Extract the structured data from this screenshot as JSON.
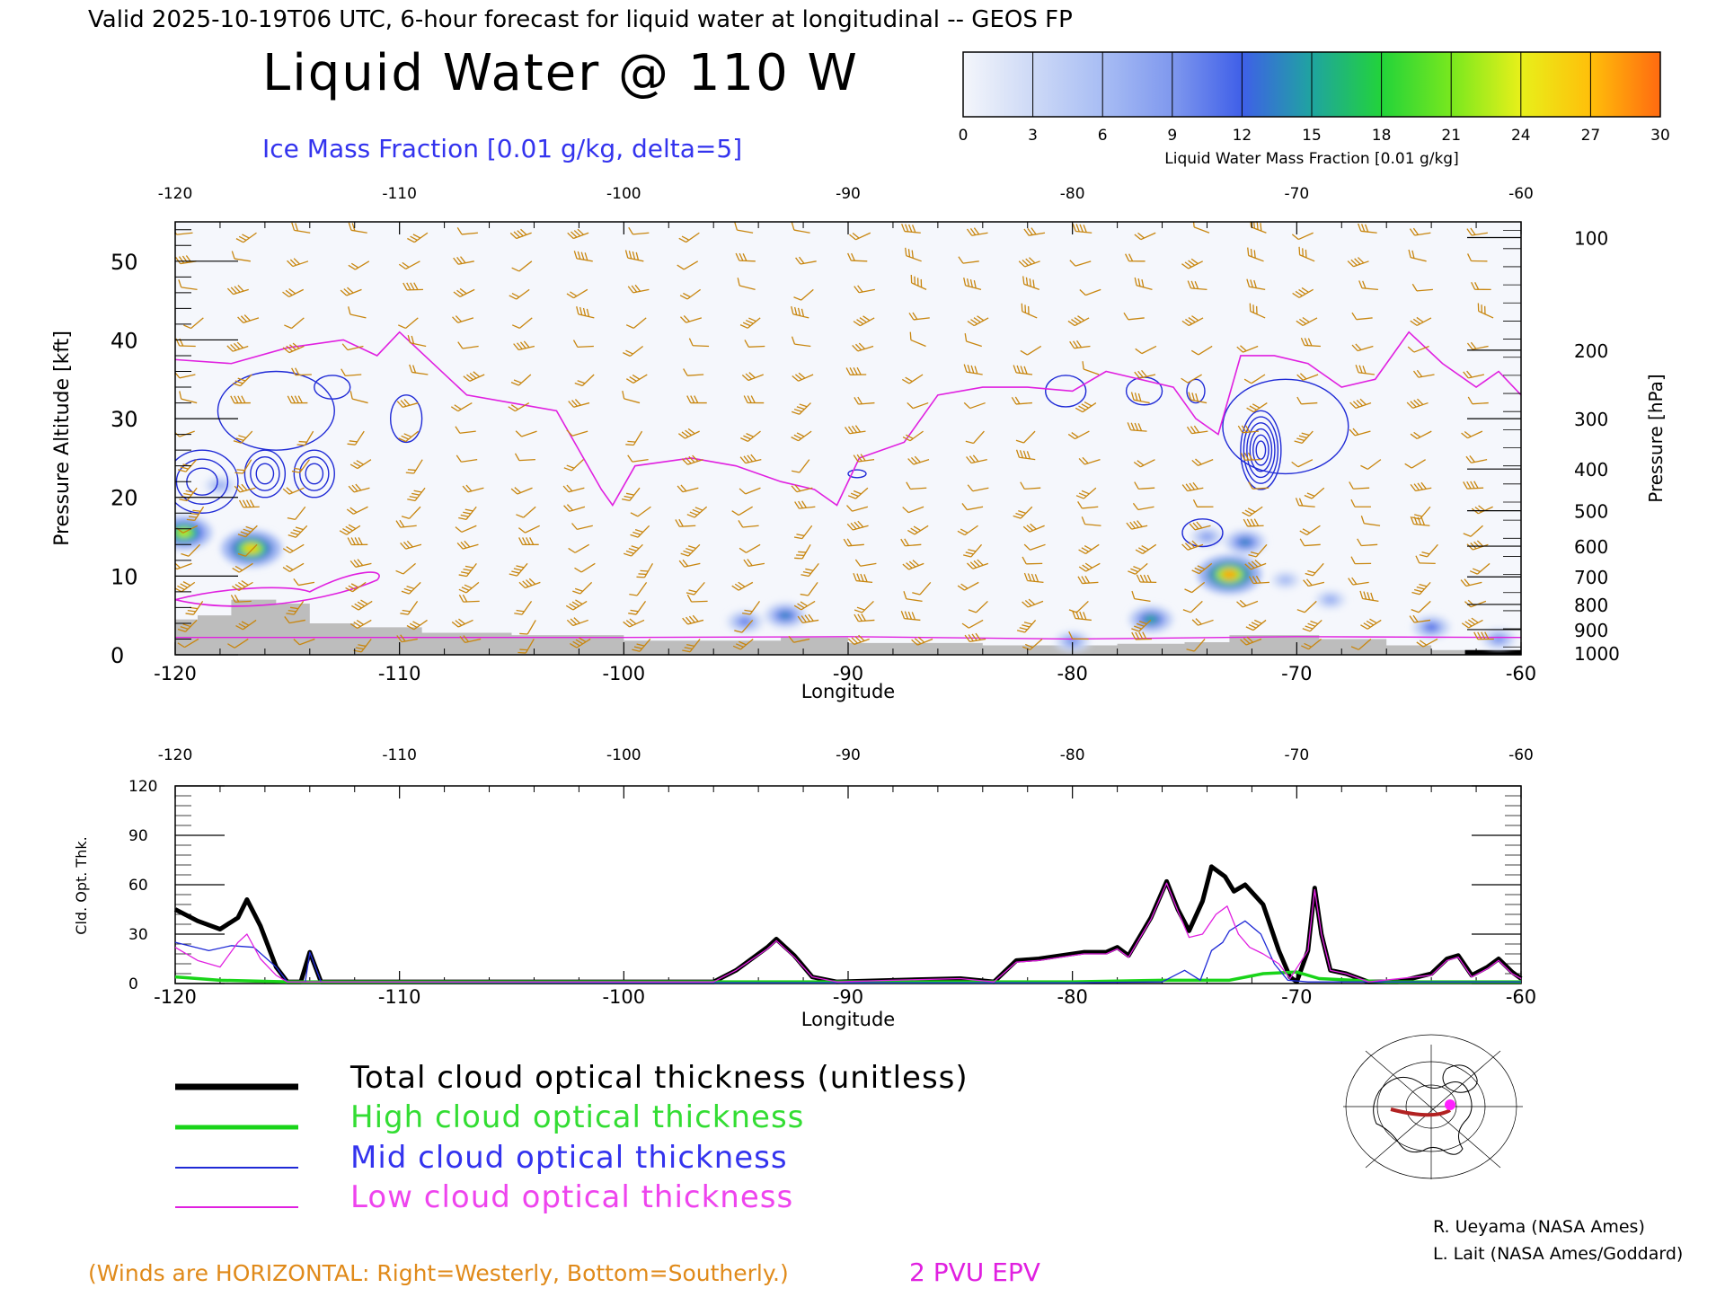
{
  "header": {
    "valid_line": "Valid 2025-10-19T06 UTC, 6-hour forecast for liquid water at longitudinal -- GEOS FP",
    "title": "Liquid Water @ 110 W",
    "subtitle": "Ice Mass Fraction [0.01 g/kg, delta=5]"
  },
  "colorbar": {
    "label": "Liquid Water Mass Fraction [0.01 g/kg]",
    "ticks": [
      "0",
      "3",
      "6",
      "9",
      "12",
      "15",
      "18",
      "21",
      "24",
      "27",
      "30"
    ],
    "colors": [
      "#f4f6fb",
      "#cdd9f6",
      "#a8bdf4",
      "#7f98ee",
      "#3f5fe8",
      "#1fa4a0",
      "#22d33a",
      "#78e81e",
      "#e8f01a",
      "#ffbf0a",
      "#ff6a10"
    ]
  },
  "colors": {
    "wind": "#c8860f",
    "ice_contour": "#1f2ad6",
    "epv": "#e020e0",
    "terrain": "#bdbdbd",
    "total": "#000000",
    "high": "#19d419",
    "mid": "#1f2ad6",
    "low": "#e020e0",
    "credit_wind": "#e08a1a"
  },
  "chart_data": [
    {
      "type": "heatmap",
      "title": "Liquid Water @ 110 W",
      "xlabel": "Longitude",
      "ylabel": "Pressure Altitude [kft]",
      "y2label": "Pressure [hPa]",
      "xlim": [
        -120,
        -60
      ],
      "ylim": [
        0,
        55
      ],
      "x_ticks": [
        "-120",
        "-110",
        "-100",
        "-90",
        "-80",
        "-70",
        "-60"
      ],
      "y_ticks": [
        "0",
        "10",
        "20",
        "30",
        "40",
        "50"
      ],
      "pressure_ticks": [
        {
          "label": "100",
          "kft": 53
        },
        {
          "label": "200",
          "kft": 38.7
        },
        {
          "label": "300",
          "kft": 30
        },
        {
          "label": "400",
          "kft": 23.6
        },
        {
          "label": "500",
          "kft": 18.3
        },
        {
          "label": "600",
          "kft": 13.8
        },
        {
          "label": "700",
          "kft": 9.9
        },
        {
          "label": "800",
          "kft": 6.4
        },
        {
          "label": "900",
          "kft": 3.2
        },
        {
          "label": "1000",
          "kft": 0.2
        }
      ],
      "liquid_water_blobs": [
        {
          "lon": -119.6,
          "kft": 15.5,
          "value": 23
        },
        {
          "lon": -116.6,
          "kft": 13.5,
          "value": 26
        },
        {
          "lon": -118.0,
          "kft": 21.5,
          "value": 8
        },
        {
          "lon": -92.8,
          "kft": 5.0,
          "value": 14
        },
        {
          "lon": -94.6,
          "kft": 4.2,
          "value": 11
        },
        {
          "lon": -76.5,
          "kft": 4.5,
          "value": 16
        },
        {
          "lon": -73.0,
          "kft": 10.2,
          "value": 28
        },
        {
          "lon": -74.0,
          "kft": 15.0,
          "value": 9
        },
        {
          "lon": -72.3,
          "kft": 14.3,
          "value": 14
        },
        {
          "lon": -70.5,
          "kft": 9.5,
          "value": 7
        },
        {
          "lon": -68.5,
          "kft": 7.0,
          "value": 8
        },
        {
          "lon": -64.0,
          "kft": 3.5,
          "value": 12
        },
        {
          "lon": -61.0,
          "kft": 2.0,
          "value": 10
        },
        {
          "lon": -80.0,
          "kft": 1.7,
          "value": 10
        }
      ],
      "ice_contours": [
        {
          "lon": -118.8,
          "kft": 22,
          "w": 1.6,
          "h": 8,
          "n": 3
        },
        {
          "lon": -116.0,
          "kft": 23,
          "w": 0.9,
          "h": 6,
          "n": 3
        },
        {
          "lon": -113.8,
          "kft": 23,
          "w": 0.9,
          "h": 6,
          "n": 3
        },
        {
          "lon": -115.5,
          "kft": 31,
          "w": 2.6,
          "h": 10,
          "n": 1
        },
        {
          "lon": -113.0,
          "kft": 34,
          "w": 0.8,
          "h": 3,
          "n": 1
        },
        {
          "lon": -109.7,
          "kft": 30,
          "w": 0.7,
          "h": 6,
          "n": 1
        },
        {
          "lon": -80.3,
          "kft": 33.5,
          "w": 0.9,
          "h": 4,
          "n": 1
        },
        {
          "lon": -76.8,
          "kft": 33.5,
          "w": 0.8,
          "h": 3.5,
          "n": 1
        },
        {
          "lon": -74.5,
          "kft": 33.5,
          "w": 0.4,
          "h": 3,
          "n": 1
        },
        {
          "lon": -71.6,
          "kft": 26,
          "w": 0.9,
          "h": 10,
          "n": 6
        },
        {
          "lon": -70.5,
          "kft": 29,
          "w": 2.8,
          "h": 12,
          "n": 1
        },
        {
          "lon": -74.2,
          "kft": 15.5,
          "w": 0.9,
          "h": 3.5,
          "n": 1
        },
        {
          "lon": -89.6,
          "kft": 23,
          "w": 0.4,
          "h": 1,
          "n": 1
        }
      ],
      "epv_2pvu": [
        [
          -120,
          37.5
        ],
        [
          -117.5,
          37
        ],
        [
          -115,
          39
        ],
        [
          -112.5,
          40
        ],
        [
          -111,
          38
        ],
        [
          -110,
          41
        ],
        [
          -107,
          33
        ],
        [
          -105,
          32
        ],
        [
          -103,
          31
        ],
        [
          -102,
          26
        ],
        [
          -101,
          21
        ],
        [
          -100.5,
          19
        ],
        [
          -99.5,
          24
        ],
        [
          -97,
          25
        ],
        [
          -95,
          24
        ],
        [
          -93,
          22
        ],
        [
          -91.5,
          21
        ],
        [
          -90.5,
          19
        ],
        [
          -89.5,
          25
        ],
        [
          -87.5,
          27
        ],
        [
          -86,
          33
        ],
        [
          -84,
          34
        ],
        [
          -82,
          34
        ],
        [
          -80,
          33.5
        ],
        [
          -78.5,
          36
        ],
        [
          -77,
          35
        ],
        [
          -75.5,
          34
        ],
        [
          -74.5,
          30
        ],
        [
          -73.5,
          28
        ],
        [
          -72.5,
          38
        ],
        [
          -71,
          38
        ],
        [
          -69.5,
          37
        ],
        [
          -68,
          34
        ],
        [
          -66.5,
          35
        ],
        [
          -65,
          41
        ],
        [
          -63.5,
          37
        ],
        [
          -62,
          34
        ],
        [
          -61,
          36
        ],
        [
          -60,
          33
        ]
      ],
      "terrain": [
        [
          -120,
          4.5
        ],
        [
          -119,
          5
        ],
        [
          -117.5,
          7
        ],
        [
          -115.5,
          6.5
        ],
        [
          -114,
          4
        ],
        [
          -112,
          3.5
        ],
        [
          -109,
          2.8
        ],
        [
          -105,
          2.5
        ],
        [
          -102,
          2.5
        ],
        [
          -100,
          1.8
        ],
        [
          -97,
          1.8
        ],
        [
          -93,
          2.2
        ],
        [
          -90,
          1.5
        ],
        [
          -87,
          1.5
        ],
        [
          -84,
          1.2
        ],
        [
          -81,
          1.2
        ],
        [
          -78,
          1.4
        ],
        [
          -75,
          1.6
        ],
        [
          -73,
          2.5
        ],
        [
          -71,
          2.5
        ],
        [
          -69,
          2
        ],
        [
          -66,
          1.2
        ],
        [
          -64,
          0.6
        ],
        [
          -62,
          0.3
        ],
        [
          -60,
          0
        ]
      ],
      "wind_legend": "(Winds are HORIZONTAL: Right=Westerly, Bottom=Southerly.)",
      "epv_legend": "2 PVU EPV"
    },
    {
      "type": "line",
      "xlabel": "Longitude",
      "ylabel": "Cld. Opt. Thk.",
      "xlim": [
        -120,
        -60
      ],
      "ylim": [
        0,
        120
      ],
      "x_ticks": [
        "-120",
        "-110",
        "-100",
        "-90",
        "-80",
        "-70",
        "-60"
      ],
      "y_ticks": [
        "0",
        "30",
        "60",
        "90",
        "120"
      ],
      "series": [
        {
          "name": "Total cloud optical thickness (unitless)",
          "color": "#000000",
          "width": 5,
          "points": [
            [
              -120,
              45
            ],
            [
              -119,
              38
            ],
            [
              -118,
              33
            ],
            [
              -117.2,
              40
            ],
            [
              -116.8,
              51
            ],
            [
              -116.2,
              35
            ],
            [
              -115.5,
              10
            ],
            [
              -115,
              1
            ],
            [
              -114.4,
              1
            ],
            [
              -114,
              19
            ],
            [
              -113.5,
              1
            ],
            [
              -112,
              1
            ],
            [
              -100,
              1
            ],
            [
              -96,
              1
            ],
            [
              -95,
              8
            ],
            [
              -93.6,
              22
            ],
            [
              -93.2,
              27
            ],
            [
              -92.4,
              17
            ],
            [
              -91.6,
              4
            ],
            [
              -90.5,
              1
            ],
            [
              -88,
              2
            ],
            [
              -85,
              3
            ],
            [
              -83.5,
              1
            ],
            [
              -82.5,
              14
            ],
            [
              -81.5,
              15
            ],
            [
              -80.5,
              17
            ],
            [
              -79.5,
              19
            ],
            [
              -78.5,
              19
            ],
            [
              -78,
              22
            ],
            [
              -77.5,
              17
            ],
            [
              -76.5,
              40
            ],
            [
              -75.8,
              62
            ],
            [
              -75.3,
              45
            ],
            [
              -74.8,
              32
            ],
            [
              -74.2,
              50
            ],
            [
              -73.8,
              71
            ],
            [
              -73.2,
              65
            ],
            [
              -72.8,
              56
            ],
            [
              -72.3,
              60
            ],
            [
              -71.5,
              48
            ],
            [
              -70.8,
              20
            ],
            [
              -70.3,
              4
            ],
            [
              -70,
              1
            ],
            [
              -69.5,
              20
            ],
            [
              -69.2,
              58
            ],
            [
              -68.9,
              30
            ],
            [
              -68.5,
              8
            ],
            [
              -67.8,
              6
            ],
            [
              -66.8,
              1
            ],
            [
              -65.5,
              1
            ],
            [
              -64,
              6
            ],
            [
              -63.3,
              15
            ],
            [
              -62.8,
              17
            ],
            [
              -62.2,
              5
            ],
            [
              -61.5,
              10
            ],
            [
              -61,
              15
            ],
            [
              -60.4,
              7
            ],
            [
              -60,
              3
            ]
          ]
        },
        {
          "name": "High cloud optical thickness",
          "color": "#19d419",
          "width": 3.5,
          "points": [
            [
              -120,
              4
            ],
            [
              -118,
              2
            ],
            [
              -115,
              1
            ],
            [
              -105,
              1
            ],
            [
              -95,
              1
            ],
            [
              -90,
              1
            ],
            [
              -80,
              1
            ],
            [
              -76,
              2
            ],
            [
              -73,
              2
            ],
            [
              -71.5,
              6
            ],
            [
              -70,
              7
            ],
            [
              -69,
              3
            ],
            [
              -66,
              1
            ],
            [
              -60,
              1
            ]
          ]
        },
        {
          "name": "Mid cloud optical thickness",
          "color": "#1f2ad6",
          "width": 1.3,
          "points": [
            [
              -120,
              25
            ],
            [
              -118.5,
              20
            ],
            [
              -117.5,
              23
            ],
            [
              -116.5,
              22
            ],
            [
              -115.5,
              10
            ],
            [
              -115,
              1
            ],
            [
              -114.2,
              1
            ],
            [
              -114,
              19
            ],
            [
              -113.5,
              1
            ],
            [
              -100,
              0.5
            ],
            [
              -80,
              0.5
            ],
            [
              -76,
              1
            ],
            [
              -75,
              8
            ],
            [
              -74.3,
              2
            ],
            [
              -73.8,
              20
            ],
            [
              -73.3,
              25
            ],
            [
              -73,
              32
            ],
            [
              -72.3,
              38
            ],
            [
              -71.6,
              30
            ],
            [
              -71,
              12
            ],
            [
              -70.4,
              2
            ],
            [
              -69.5,
              1
            ],
            [
              -60,
              1
            ]
          ]
        },
        {
          "name": "Low cloud optical thickness",
          "color": "#e020e0",
          "width": 1.3,
          "points": [
            [
              -120,
              22
            ],
            [
              -119,
              14
            ],
            [
              -118,
              10
            ],
            [
              -117.2,
              25
            ],
            [
              -116.8,
              30
            ],
            [
              -116.2,
              15
            ],
            [
              -115.5,
              5
            ],
            [
              -115,
              1
            ],
            [
              -96,
              1
            ],
            [
              -95,
              8
            ],
            [
              -93.6,
              21
            ],
            [
              -93.2,
              26
            ],
            [
              -92.4,
              16
            ],
            [
              -91.6,
              4
            ],
            [
              -90.5,
              1
            ],
            [
              -88,
              2
            ],
            [
              -85,
              3
            ],
            [
              -83.5,
              1
            ],
            [
              -82.5,
              13
            ],
            [
              -81.5,
              14
            ],
            [
              -80.5,
              16
            ],
            [
              -79.5,
              18
            ],
            [
              -78.5,
              18
            ],
            [
              -78,
              21
            ],
            [
              -77.5,
              16
            ],
            [
              -76.5,
              39
            ],
            [
              -75.8,
              61
            ],
            [
              -75.3,
              44
            ],
            [
              -74.8,
              28
            ],
            [
              -74.2,
              30
            ],
            [
              -73.6,
              42
            ],
            [
              -73.1,
              47
            ],
            [
              -72.6,
              30
            ],
            [
              -72.1,
              22
            ],
            [
              -71.5,
              18
            ],
            [
              -70.8,
              12
            ],
            [
              -70.3,
              3
            ],
            [
              -69.5,
              20
            ],
            [
              -69.2,
              57
            ],
            [
              -68.9,
              30
            ],
            [
              -68.5,
              8
            ],
            [
              -67.8,
              6
            ],
            [
              -66.8,
              1
            ],
            [
              -64,
              5
            ],
            [
              -63.3,
              14
            ],
            [
              -62.8,
              16
            ],
            [
              -62.2,
              4
            ],
            [
              -61.5,
              9
            ],
            [
              -61,
              14
            ],
            [
              -60.4,
              6
            ],
            [
              -60,
              3
            ]
          ]
        }
      ]
    }
  ],
  "legend_labels": {
    "total": "Total cloud optical thickness (unitless)",
    "high": "High cloud optical thickness",
    "mid": "Mid cloud optical thickness",
    "low": "Low cloud optical thickness"
  },
  "credits": {
    "line1": "R. Ueyama (NASA Ames)",
    "line2": "L. Lait (NASA Ames/Goddard)"
  },
  "map_inset": {
    "icon": "polar-map-icon",
    "track_color": "#b22222",
    "marker_color": "#ff20ff"
  }
}
